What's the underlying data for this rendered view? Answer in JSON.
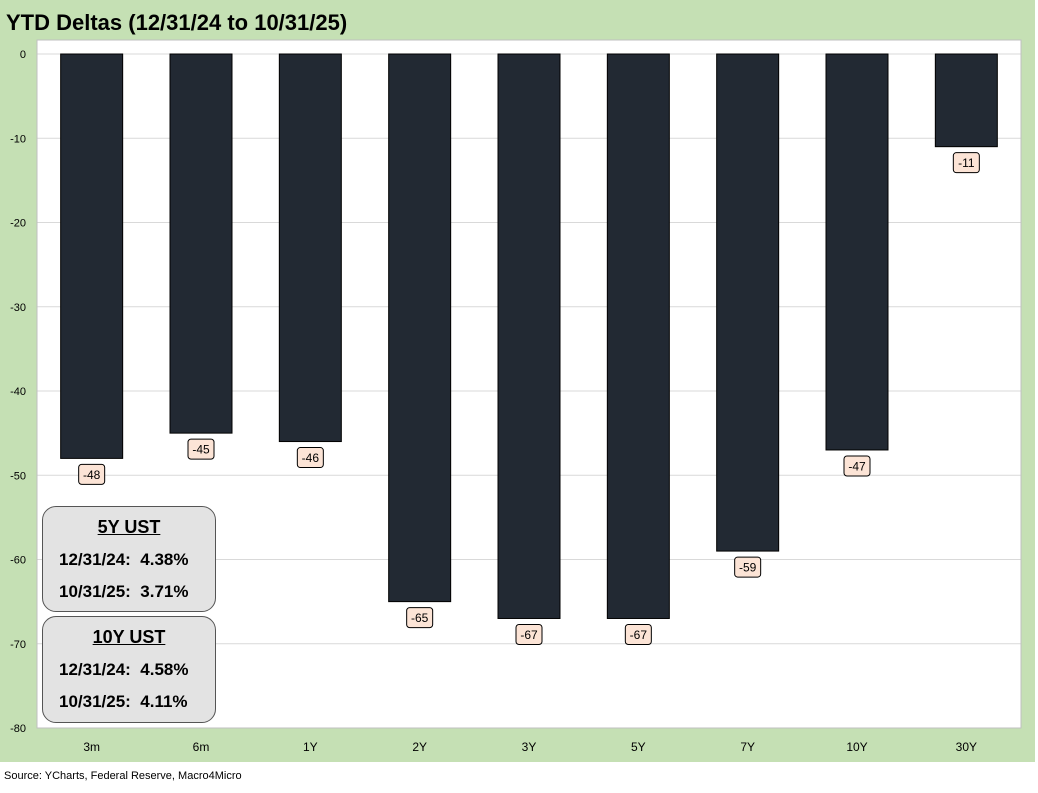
{
  "title": "YTD Deltas (12/31/24 to 10/31/25)",
  "source": "Source: YCharts, Federal Reserve, Macro4Micro",
  "chart_data": {
    "type": "bar",
    "title": "YTD Deltas (12/31/24 to 10/31/25)",
    "categories": [
      "3m",
      "6m",
      "1Y",
      "2Y",
      "3Y",
      "5Y",
      "7Y",
      "10Y",
      "30Y"
    ],
    "values": [
      -48,
      -45,
      -46,
      -65,
      -67,
      -67,
      -59,
      -47,
      -11
    ],
    "data_labels": [
      "-48",
      "-45",
      "-46",
      "-65",
      "-67",
      "-67",
      "-59",
      "-47",
      "-11"
    ],
    "ylim": [
      -80,
      0
    ],
    "yticks": [
      0,
      -10,
      -20,
      -30,
      -40,
      -50,
      -60,
      -70,
      -80
    ],
    "ytick_labels": [
      "0",
      "-10",
      "-20",
      "-30",
      "-40",
      "-50",
      "-60",
      "-70",
      "-80"
    ],
    "grid": true,
    "legend": "none",
    "bar_color": "#222933",
    "label_box_color": "#fce4d6",
    "background_color": "#c5e0b4"
  },
  "info_boxes": [
    {
      "title": "5Y UST",
      "rows": [
        "12/31/24:  4.38%",
        "10/31/25:  3.71%"
      ]
    },
    {
      "title": "10Y UST",
      "rows": [
        "12/31/24:  4.58%",
        "10/31/25:  4.11%"
      ]
    }
  ]
}
